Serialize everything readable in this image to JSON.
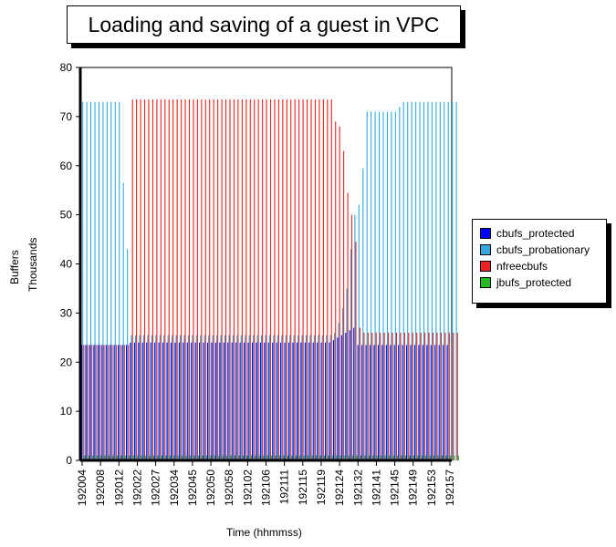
{
  "chart_data": {
    "type": "bar",
    "title": "Loading and saving of a guest in VPC",
    "xlabel": "Time (hhmmss)",
    "ylabel": "Buffers",
    "ylabel2": "Thousands",
    "ylim": [
      0,
      80
    ],
    "yticks": [
      0,
      10,
      20,
      30,
      40,
      50,
      60,
      70,
      80
    ],
    "grid": false,
    "legend_position": "right",
    "xtick_labels": [
      "192004",
      "192008",
      "192012",
      "192022",
      "192027",
      "192034",
      "192045",
      "192050",
      "192058",
      "192102",
      "192106",
      "192111",
      "192115",
      "192119",
      "192124",
      "192132",
      "192141",
      "192145",
      "192149",
      "192153",
      "192157"
    ],
    "colors": {
      "cbufs_protected": "#0000ff",
      "cbufs_probationary": "#33aadd",
      "nfreecbufs": "#ee2222",
      "jbufs_protected": "#22bb22"
    },
    "series": [
      {
        "name": "cbufs_protected",
        "values": [
          23.5,
          23.5,
          23.5,
          23.5,
          23.5,
          23.5,
          23.5,
          23.5,
          23.5,
          23.5,
          23.5,
          23.5,
          24,
          24,
          24,
          24,
          24,
          24,
          24,
          24,
          24,
          24,
          24,
          24,
          24,
          24,
          24,
          24,
          24,
          24,
          24,
          24,
          24,
          24,
          24,
          24,
          24,
          24,
          24,
          24,
          24,
          24,
          24,
          24,
          24,
          24,
          24,
          24,
          24,
          24,
          24,
          24,
          24,
          24,
          24,
          24,
          24,
          24,
          24,
          24,
          24,
          24,
          24.5,
          25,
          25.5,
          26,
          26.5,
          27,
          23.5,
          23.5,
          23.5,
          23.5,
          23.5,
          23.5,
          23.5,
          23.5,
          23.5,
          23.5,
          23.5,
          23.5,
          23.5,
          23.5,
          23.5,
          23.5,
          23.5,
          23.5,
          23.5,
          23.5,
          23.5,
          23.5,
          23.5
        ]
      },
      {
        "name": "cbufs_probationary",
        "values": [
          73,
          73,
          73,
          73,
          73,
          73,
          73,
          73,
          73,
          73,
          56.5,
          43,
          25.5,
          25.5,
          25.5,
          25.5,
          25.5,
          25.5,
          25.5,
          25.5,
          25.5,
          25.5,
          25.5,
          25.5,
          25.5,
          25.5,
          25.5,
          25.5,
          25.5,
          25.5,
          25.5,
          25.5,
          25.5,
          25.5,
          25.5,
          25.5,
          25.5,
          25.5,
          25.5,
          25.5,
          25.5,
          25.5,
          25.5,
          25.5,
          25.5,
          25.5,
          25.5,
          25.5,
          25.5,
          25.5,
          25.5,
          25.5,
          25.5,
          25.5,
          25.5,
          25.5,
          25.5,
          25.5,
          25.5,
          25.5,
          25.5,
          25.5,
          26,
          28,
          31,
          35,
          43,
          50,
          52,
          59.5,
          71,
          71,
          71,
          71,
          71,
          71,
          71,
          71,
          72,
          73,
          73,
          73,
          73,
          73,
          73,
          73,
          73,
          73,
          73,
          73,
          73,
          73,
          73
        ]
      },
      {
        "name": "nfreecbufs",
        "values": [
          23.5,
          23.5,
          23.5,
          23.5,
          23.5,
          23.5,
          23.5,
          23.5,
          23.5,
          23.5,
          23.5,
          23.5,
          73.5,
          73.5,
          73.5,
          73.5,
          73.5,
          73.5,
          73.5,
          73.5,
          73.5,
          73.5,
          73.5,
          73.5,
          73.5,
          73.5,
          73.5,
          73.5,
          73.5,
          73.5,
          73.5,
          73.5,
          73.5,
          73.5,
          73.5,
          73.5,
          73.5,
          73.5,
          73.5,
          73.5,
          73.5,
          73.5,
          73.5,
          73.5,
          73.5,
          73.5,
          73.5,
          73.5,
          73.5,
          73.5,
          73.5,
          73.5,
          73.5,
          73.5,
          73.5,
          73.5,
          73.5,
          73.5,
          73.5,
          73.5,
          73.5,
          73.5,
          69,
          68,
          63,
          54.5,
          50,
          44.5,
          27,
          26,
          26,
          26,
          26,
          26,
          26,
          26,
          26,
          26,
          26,
          26,
          26,
          26,
          26,
          26,
          26,
          26,
          26,
          26,
          26,
          26,
          26,
          26,
          26
        ]
      },
      {
        "name": "jbufs_protected",
        "values": [
          1,
          1,
          1,
          1,
          1,
          1,
          1,
          1,
          1,
          1,
          1,
          1,
          1,
          1,
          1,
          1,
          1,
          1,
          1,
          1,
          1,
          1,
          1,
          1,
          1,
          1,
          1,
          1,
          1,
          1,
          1,
          1,
          1,
          1,
          1,
          1,
          1,
          1,
          1,
          1,
          1,
          1,
          1,
          1,
          1,
          1,
          1,
          1,
          1,
          1,
          1,
          1,
          1,
          1,
          1,
          1,
          1,
          1,
          1,
          1,
          1,
          1,
          1,
          1,
          1,
          1,
          1,
          1,
          1,
          1,
          1,
          1,
          1,
          1,
          1,
          1,
          1,
          1,
          1,
          1,
          1,
          1,
          1,
          1,
          1,
          1,
          1,
          1,
          1,
          1,
          1,
          1,
          1
        ]
      }
    ]
  }
}
